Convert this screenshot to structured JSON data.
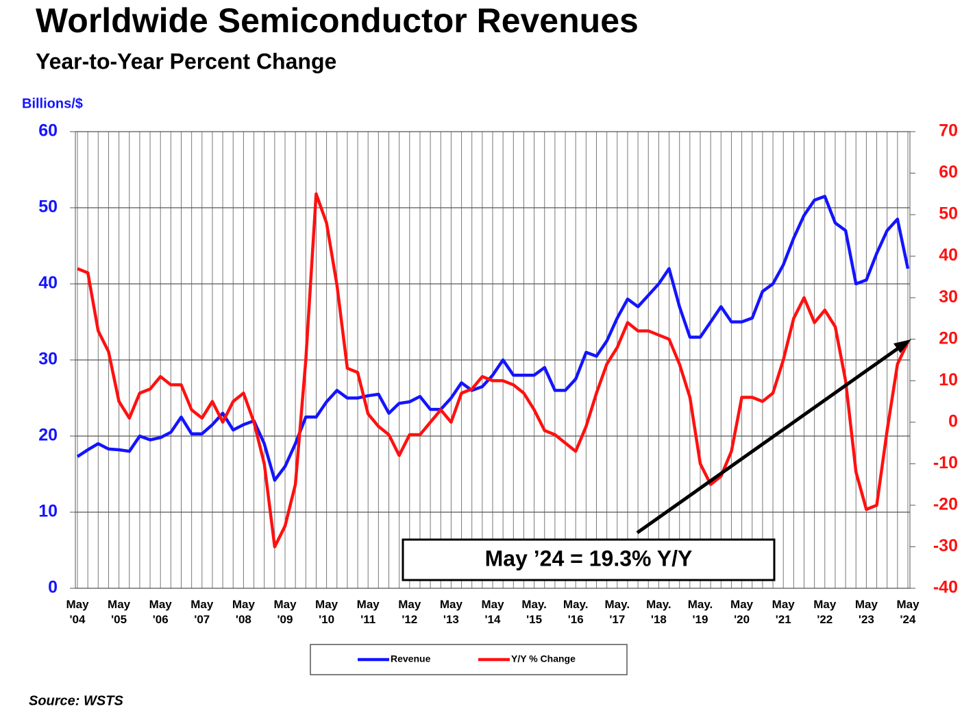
{
  "chart_data": {
    "type": "line",
    "title": "Worldwide Semiconductor Revenues",
    "subtitle": "Year-to-Year Percent Change",
    "y_label": "Billions/$",
    "annotation": "May ’24 = 19.3% Y/Y",
    "source": "Source: WSTS",
    "categories": [
      "May '04",
      null,
      null,
      null,
      "May '05",
      null,
      null,
      null,
      "May '06",
      null,
      null,
      null,
      "May '07",
      null,
      null,
      null,
      "May '08",
      null,
      null,
      null,
      "May '09",
      null,
      null,
      null,
      "May '10",
      null,
      null,
      null,
      "May '11",
      null,
      null,
      null,
      "May '12",
      null,
      null,
      null,
      "May '13",
      null,
      null,
      null,
      "May '14",
      null,
      null,
      null,
      "May. '15",
      null,
      null,
      null,
      "May. '16",
      null,
      null,
      null,
      "May. '17",
      null,
      null,
      null,
      "May. '18",
      null,
      null,
      null,
      "May. '19",
      null,
      null,
      null,
      "May '20",
      null,
      null,
      null,
      "May '21",
      null,
      null,
      null,
      "May '22",
      null,
      null,
      null,
      "May '23",
      null,
      null,
      null,
      "May '24"
    ],
    "series": [
      {
        "name": "Revenue",
        "color": "#1414ff",
        "values": [
          17.3,
          18.2,
          19.0,
          18.3,
          18.2,
          18.0,
          20.0,
          19.5,
          19.8,
          20.5,
          22.5,
          20.3,
          20.3,
          21.5,
          23.0,
          20.8,
          21.5,
          22.0,
          19.0,
          14.2,
          16.0,
          19.0,
          22.5,
          22.5,
          24.5,
          26.0,
          25.0,
          25.0,
          25.3,
          25.5,
          23.0,
          24.3,
          24.5,
          25.2,
          23.5,
          23.5,
          25.0,
          27.0,
          26.0,
          26.5,
          28.0,
          30.0,
          28.0,
          28.0,
          28.0,
          29.0,
          26.0,
          26.0,
          27.5,
          31.0,
          30.5,
          32.5,
          35.5,
          38.0,
          37.0,
          38.5,
          40.0,
          42.0,
          37.0,
          33.0,
          33.0,
          35.0,
          37.0,
          35.0,
          35.0,
          35.5,
          39.0,
          40.0,
          42.5,
          46.0,
          49.0,
          51.0,
          51.5,
          48.0,
          47.0,
          40.0,
          40.5,
          44.0,
          47.0,
          48.5,
          42.0
        ]
      },
      {
        "name": "Y/Y % Change",
        "color": "#ff1010",
        "axis": "y2",
        "values": [
          37,
          36,
          22,
          17,
          5,
          1,
          7,
          8,
          11,
          9,
          9,
          3,
          1,
          5,
          0,
          5,
          7,
          0,
          -10,
          -30,
          -25,
          -15,
          15,
          55,
          48,
          33,
          13,
          12,
          2,
          -1,
          -3,
          -8,
          -3,
          -3,
          0,
          3,
          0,
          7,
          8,
          11,
          10,
          10,
          9,
          7,
          3,
          -2,
          -3,
          -5,
          -7,
          -1,
          7,
          14,
          18,
          24,
          22,
          22,
          21,
          20,
          14,
          6,
          -10,
          -15,
          -13,
          -7,
          6,
          6,
          5,
          7,
          15,
          25,
          30,
          24,
          27,
          23,
          10,
          -12,
          -21,
          -20,
          -2,
          14,
          19.3
        ]
      }
    ],
    "ylim": [
      0,
      60
    ],
    "yticks": [
      0,
      10,
      20,
      30,
      40,
      50,
      60
    ],
    "y2lim": [
      -40,
      70
    ],
    "y2ticks": [
      -40,
      -30,
      -20,
      -10,
      0,
      10,
      20,
      30,
      40,
      50,
      60,
      70
    ],
    "grid": true
  }
}
